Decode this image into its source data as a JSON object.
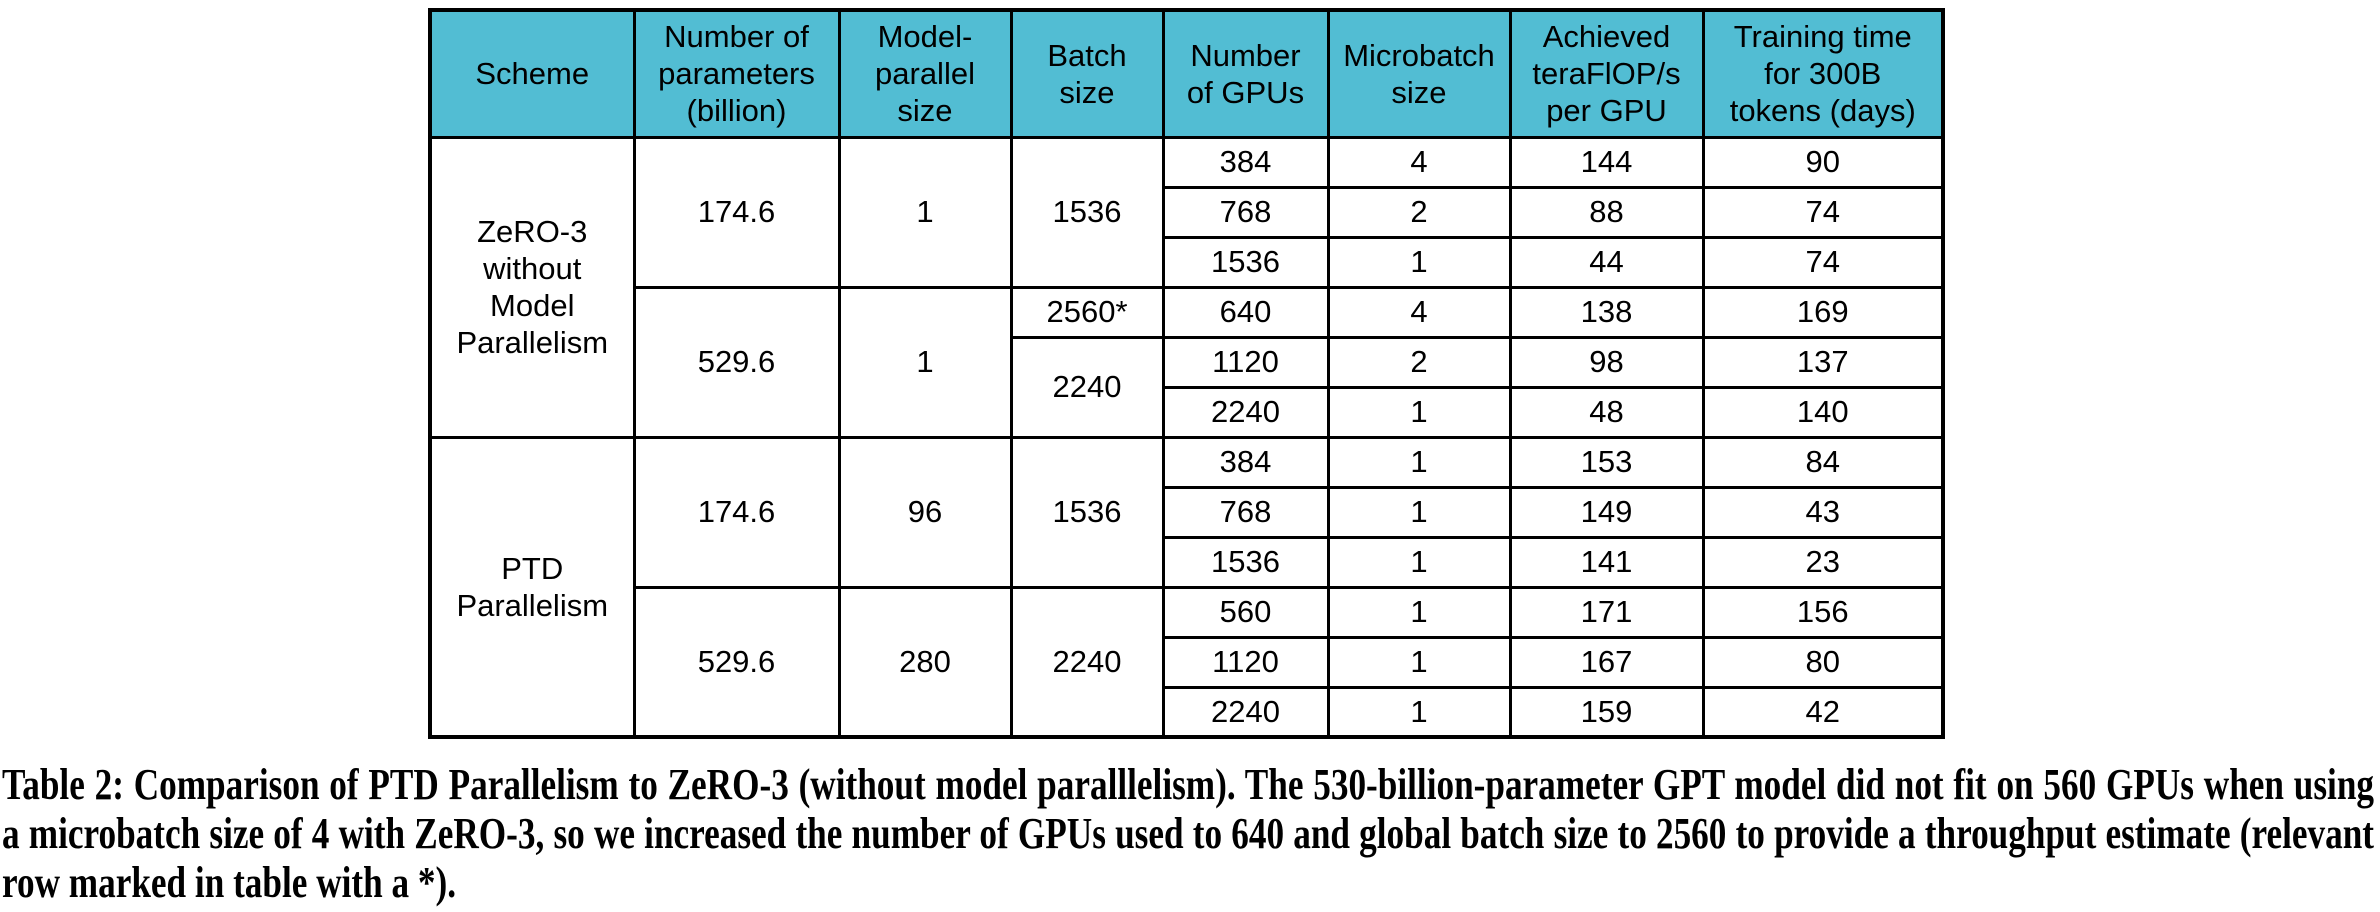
{
  "table": {
    "header_bg": "#52bdd3",
    "headers": [
      "Scheme",
      "Number of\nparameters\n(billion)",
      "Model-\nparallel\nsize",
      "Batch\nsize",
      "Number\nof GPUs",
      "Microbatch\nsize",
      "Achieved\nteraFlOP/s\nper GPU",
      "Training time\nfor 300B\ntokens (days)"
    ],
    "sections": [
      {
        "scheme": "ZeRO-3\nwithout\nModel\nParallelism",
        "groups": [
          {
            "params": "174.6",
            "mp_size": "1",
            "batch_groups": [
              {
                "batch": "1536",
                "rows": [
                  {
                    "gpus": "384",
                    "microbatch": "4",
                    "teraflops": "144",
                    "days": "90"
                  },
                  {
                    "gpus": "768",
                    "microbatch": "2",
                    "teraflops": "88",
                    "days": "74"
                  },
                  {
                    "gpus": "1536",
                    "microbatch": "1",
                    "teraflops": "44",
                    "days": "74"
                  }
                ]
              }
            ]
          },
          {
            "params": "529.6",
            "mp_size": "1",
            "batch_groups": [
              {
                "batch": "2560*",
                "rows": [
                  {
                    "gpus": "640",
                    "microbatch": "4",
                    "teraflops": "138",
                    "days": "169"
                  }
                ]
              },
              {
                "batch": "2240",
                "rows": [
                  {
                    "gpus": "1120",
                    "microbatch": "2",
                    "teraflops": "98",
                    "days": "137"
                  },
                  {
                    "gpus": "2240",
                    "microbatch": "1",
                    "teraflops": "48",
                    "days": "140"
                  }
                ]
              }
            ]
          }
        ]
      },
      {
        "scheme": "PTD\nParallelism",
        "groups": [
          {
            "params": "174.6",
            "mp_size": "96",
            "batch_groups": [
              {
                "batch": "1536",
                "rows": [
                  {
                    "gpus": "384",
                    "microbatch": "1",
                    "teraflops": "153",
                    "days": "84"
                  },
                  {
                    "gpus": "768",
                    "microbatch": "1",
                    "teraflops": "149",
                    "days": "43"
                  },
                  {
                    "gpus": "1536",
                    "microbatch": "1",
                    "teraflops": "141",
                    "days": "23"
                  }
                ]
              }
            ]
          },
          {
            "params": "529.6",
            "mp_size": "280",
            "batch_groups": [
              {
                "batch": "2240",
                "rows": [
                  {
                    "gpus": "560",
                    "microbatch": "1",
                    "teraflops": "171",
                    "days": "156"
                  },
                  {
                    "gpus": "1120",
                    "microbatch": "1",
                    "teraflops": "167",
                    "days": "80"
                  },
                  {
                    "gpus": "2240",
                    "microbatch": "1",
                    "teraflops": "159",
                    "days": "42"
                  }
                ]
              }
            ]
          }
        ]
      }
    ]
  },
  "chart_data": {
    "type": "table",
    "title": "Table 2: Comparison of PTD Parallelism to ZeRO-3",
    "columns": [
      "Scheme",
      "Number of parameters (billion)",
      "Model-parallel size",
      "Batch size",
      "Number of GPUs",
      "Microbatch size",
      "Achieved teraFlOP/s per GPU",
      "Training time for 300B tokens (days)"
    ],
    "rows": [
      [
        "ZeRO-3 without Model Parallelism",
        174.6,
        1,
        "1536",
        384,
        4,
        144,
        90
      ],
      [
        "ZeRO-3 without Model Parallelism",
        174.6,
        1,
        "1536",
        768,
        2,
        88,
        74
      ],
      [
        "ZeRO-3 without Model Parallelism",
        174.6,
        1,
        "1536",
        1536,
        1,
        44,
        74
      ],
      [
        "ZeRO-3 without Model Parallelism",
        529.6,
        1,
        "2560*",
        640,
        4,
        138,
        169
      ],
      [
        "ZeRO-3 without Model Parallelism",
        529.6,
        1,
        "2240",
        1120,
        2,
        98,
        137
      ],
      [
        "ZeRO-3 without Model Parallelism",
        529.6,
        1,
        "2240",
        2240,
        1,
        48,
        140
      ],
      [
        "PTD Parallelism",
        174.6,
        96,
        "1536",
        384,
        1,
        153,
        84
      ],
      [
        "PTD Parallelism",
        174.6,
        96,
        "1536",
        768,
        1,
        149,
        43
      ],
      [
        "PTD Parallelism",
        174.6,
        96,
        "1536",
        1536,
        1,
        141,
        23
      ],
      [
        "PTD Parallelism",
        529.6,
        280,
        "2240",
        560,
        1,
        171,
        156
      ],
      [
        "PTD Parallelism",
        529.6,
        280,
        "2240",
        1120,
        1,
        167,
        80
      ],
      [
        "PTD Parallelism",
        529.6,
        280,
        "2240",
        2240,
        1,
        159,
        42
      ]
    ]
  },
  "caption": "Table 2: Comparison of PTD Parallelism to ZeRO-3 (without model paralllelism). The 530-billion-parameter GPT model did not fit on 560 GPUs when using a microbatch size of 4 with ZeRO-3, so we increased the number of GPUs used to 640 and global batch size to 2560 to provide a throughput estimate (relevant row marked in table with a *)."
}
